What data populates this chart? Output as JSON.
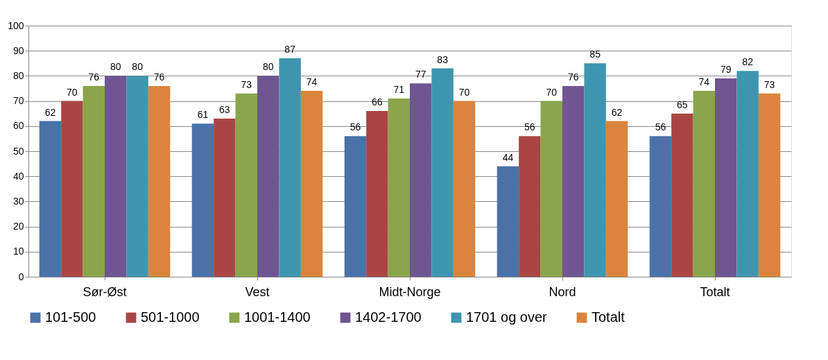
{
  "chart_data": {
    "type": "bar",
    "categories": [
      "Sør-Øst",
      "Vest",
      "Midt-Norge",
      "Nord",
      "Totalt"
    ],
    "series": [
      {
        "name": "101-500",
        "color": "#4a72a8",
        "values": [
          62,
          61,
          56,
          44,
          56
        ]
      },
      {
        "name": "501-1000",
        "color": "#a94643",
        "values": [
          70,
          63,
          66,
          56,
          65
        ]
      },
      {
        "name": "1001-1400",
        "color": "#8aa54b",
        "values": [
          76,
          73,
          71,
          70,
          74
        ]
      },
      {
        "name": "1402-1700",
        "color": "#6f5591",
        "values": [
          80,
          80,
          77,
          76,
          79
        ]
      },
      {
        "name": "1701 og over",
        "color": "#3e96ae",
        "values": [
          80,
          87,
          83,
          85,
          82
        ]
      },
      {
        "name": "Totalt",
        "color": "#db843d",
        "values": [
          76,
          74,
          70,
          62,
          73
        ]
      }
    ],
    "ylim": [
      0,
      100
    ],
    "yticks": [
      0,
      10,
      20,
      30,
      40,
      50,
      60,
      70,
      80,
      90,
      100
    ],
    "grid": "y",
    "legend": "bottom",
    "data_labels": true
  }
}
